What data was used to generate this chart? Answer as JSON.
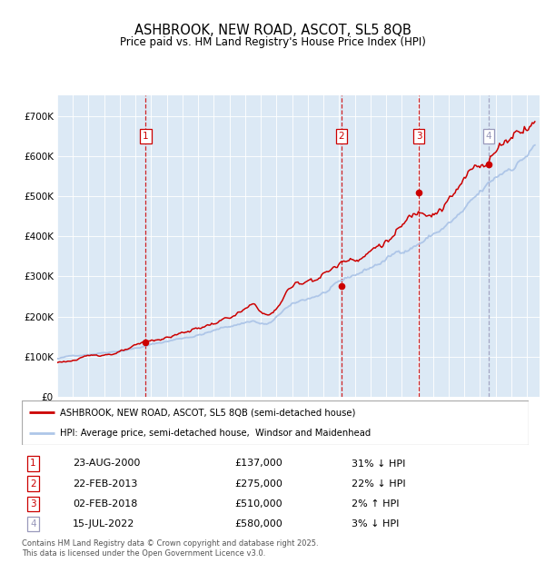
{
  "title": "ASHBROOK, NEW ROAD, ASCOT, SL5 8QB",
  "subtitle": "Price paid vs. HM Land Registry's House Price Index (HPI)",
  "legend_line1": "ASHBROOK, NEW ROAD, ASCOT, SL5 8QB (semi-detached house)",
  "legend_line2": "HPI: Average price, semi-detached house,  Windsor and Maidenhead",
  "footer1": "Contains HM Land Registry data © Crown copyright and database right 2025.",
  "footer2": "This data is licensed under the Open Government Licence v3.0.",
  "hpi_color": "#aec6e8",
  "price_color": "#cc0000",
  "plot_bg_color": "#dce9f5",
  "ylim": [
    0,
    750000
  ],
  "xlim_start": 1995.0,
  "xlim_end": 2025.8,
  "transactions": [
    {
      "num": 1,
      "date": "23-AUG-2000",
      "price": 137000,
      "pct": "31%",
      "dir": "↓",
      "year": 2000.65
    },
    {
      "num": 2,
      "date": "22-FEB-2013",
      "price": 275000,
      "pct": "22%",
      "dir": "↓",
      "year": 2013.15
    },
    {
      "num": 3,
      "date": "02-FEB-2018",
      "price": 510000,
      "pct": "2%",
      "dir": "↑",
      "year": 2018.1
    },
    {
      "num": 4,
      "date": "15-JUL-2022",
      "price": 580000,
      "pct": "3%",
      "dir": "↓",
      "year": 2022.55
    }
  ],
  "yticks": [
    0,
    100000,
    200000,
    300000,
    400000,
    500000,
    600000,
    700000
  ],
  "ytick_labels": [
    "£0",
    "£100K",
    "£200K",
    "£300K",
    "£400K",
    "£500K",
    "£600K",
    "£700K"
  ]
}
